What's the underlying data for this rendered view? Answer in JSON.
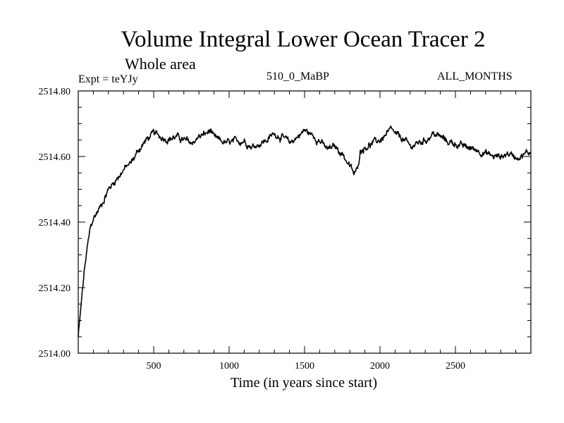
{
  "chart_data": {
    "type": "line",
    "title": "Volume Integral Lower Ocean Tracer 2",
    "subtitle": "Whole area",
    "experiment_label": "Expt = teYJy",
    "center_label": "510_0_MaBP",
    "right_label": "ALL_MONTHS",
    "xlabel": "Time (in years since start)",
    "ylabel": "",
    "xlim": [
      0,
      3000
    ],
    "ylim": [
      2514.0,
      2514.8
    ],
    "x_ticks": [
      500,
      1000,
      1500,
      2000,
      2500
    ],
    "x_tick_labels": [
      "500",
      "1000",
      "1500",
      "2000",
      "2500"
    ],
    "y_ticks": [
      2514.0,
      2514.2,
      2514.4,
      2514.6,
      2514.8
    ],
    "y_tick_labels": [
      "2514.00",
      "2514.20",
      "2514.40",
      "2514.60",
      "2514.80"
    ],
    "grid": false,
    "series": [
      {
        "name": "Volume Integral Lower Ocean Tracer 2",
        "x": [
          0,
          20,
          40,
          60,
          80,
          100,
          150,
          200,
          250,
          300,
          350,
          400,
          450,
          500,
          550,
          600,
          650,
          700,
          750,
          800,
          850,
          880,
          900,
          950,
          1000,
          1050,
          1100,
          1150,
          1200,
          1250,
          1300,
          1350,
          1400,
          1450,
          1500,
          1550,
          1600,
          1650,
          1700,
          1750,
          1800,
          1830,
          1850,
          1870,
          1900,
          1950,
          2000,
          2050,
          2080,
          2100,
          2150,
          2200,
          2250,
          2300,
          2350,
          2400,
          2450,
          2500,
          2550,
          2600,
          2650,
          2700,
          2750,
          2800,
          2850,
          2900,
          2950,
          3000
        ],
        "values": [
          2514.05,
          2514.15,
          2514.25,
          2514.32,
          2514.38,
          2514.41,
          2514.45,
          2514.5,
          2514.53,
          2514.56,
          2514.58,
          2514.62,
          2514.65,
          2514.67,
          2514.66,
          2514.655,
          2514.66,
          2514.65,
          2514.64,
          2514.66,
          2514.67,
          2514.68,
          2514.655,
          2514.645,
          2514.64,
          2514.645,
          2514.65,
          2514.63,
          2514.64,
          2514.65,
          2514.67,
          2514.66,
          2514.64,
          2514.66,
          2514.68,
          2514.665,
          2514.65,
          2514.62,
          2514.63,
          2514.61,
          2514.57,
          2514.545,
          2514.56,
          2514.62,
          2514.63,
          2514.64,
          2514.65,
          2514.67,
          2514.68,
          2514.665,
          2514.655,
          2514.63,
          2514.64,
          2514.65,
          2514.67,
          2514.66,
          2514.645,
          2514.64,
          2514.63,
          2514.625,
          2514.62,
          2514.61,
          2514.6,
          2514.6,
          2514.61,
          2514.6,
          2514.605,
          2514.615
        ]
      }
    ]
  }
}
